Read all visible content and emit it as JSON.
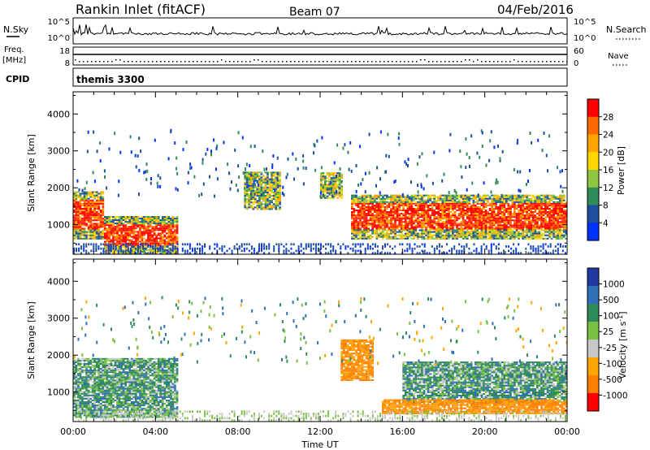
{
  "header": {
    "station": "Rankin Inlet (fitACF)",
    "beam": "Beam 07",
    "date": "04/Feb/2016"
  },
  "strip_nsky": {
    "left_label": "N.Sky",
    "left_ticks": [
      "10^5",
      "10^0"
    ],
    "right_label": "N.Search",
    "right_ticks": [
      "10^5",
      "10^0"
    ]
  },
  "strip_freq": {
    "left_label_1": "Freq.",
    "left_label_2": "[MHz]",
    "left_ticks": [
      "18",
      "8"
    ],
    "right_label": "Nave",
    "right_ticks": [
      "60",
      "0"
    ]
  },
  "cpid": {
    "label": "CPID",
    "value": "themis 3300"
  },
  "chart_data": [
    {
      "type": "heatmap",
      "parameter": "power",
      "ylabel": "Slant Range [km]",
      "ylim": [
        200,
        4600
      ],
      "y_ticks": [
        1000,
        2000,
        3000,
        4000
      ],
      "xlim": [
        0,
        24
      ],
      "x_tick_labels": [
        "00:00",
        "04:00",
        "08:00",
        "12:00",
        "16:00",
        "20:00",
        "00:00"
      ],
      "colorbar": {
        "label": "Power [dB]",
        "ticks": [
          "28",
          "24",
          "20",
          "16",
          "12",
          "8",
          "4"
        ],
        "range": [
          0,
          30
        ],
        "colors": [
          "#ff0000",
          "#ff6a00",
          "#ffa500",
          "#ffd700",
          "#8ec63f",
          "#2e8b57",
          "#1f4e9c",
          "#0033ff"
        ]
      },
      "features": [
        {
          "t_start": 0.0,
          "t_end": 1.5,
          "r_low": 600,
          "r_high": 1900,
          "level": "strong"
        },
        {
          "t_start": 1.5,
          "t_end": 5.0,
          "r_low": 200,
          "r_high": 1200,
          "level": "strong"
        },
        {
          "t_start": 8.3,
          "t_end": 10.0,
          "r_low": 1400,
          "r_high": 2400,
          "level": "moderate"
        },
        {
          "t_start": 12.0,
          "t_end": 13.0,
          "r_low": 1700,
          "r_high": 2400,
          "level": "moderate"
        },
        {
          "t_start": 13.5,
          "t_end": 24.0,
          "r_low": 600,
          "r_high": 1800,
          "level": "strong"
        }
      ]
    },
    {
      "type": "heatmap",
      "parameter": "velocity",
      "ylabel": "Slant Range [km]",
      "ylim": [
        200,
        4600
      ],
      "y_ticks": [
        1000,
        2000,
        3000,
        4000
      ],
      "xlim": [
        0,
        24
      ],
      "x_tick_labels": [
        "00:00",
        "04:00",
        "08:00",
        "12:00",
        "16:00",
        "20:00",
        "00:00"
      ],
      "xlabel": "Time UT",
      "colorbar": {
        "label": "Velocity [m s^-1]",
        "ticks": [
          "1000",
          "500",
          "100",
          "25",
          "-25",
          "-100",
          "-500",
          "-1000"
        ],
        "range": [
          -1000,
          1000
        ],
        "colors": [
          "#1e3aa0",
          "#2f6fb5",
          "#2e8b57",
          "#7ac143",
          "#c8c8c8",
          "#ffa500",
          "#ff7f00",
          "#ff0000"
        ]
      },
      "features": [
        {
          "t_start": 0.0,
          "t_end": 5.0,
          "r_low": 300,
          "r_high": 1900,
          "sign": "positive"
        },
        {
          "t_start": 13.0,
          "t_end": 14.5,
          "r_low": 1300,
          "r_high": 2400,
          "sign": "negative"
        },
        {
          "t_start": 16.0,
          "t_end": 24.0,
          "r_low": 700,
          "r_high": 1800,
          "sign": "positive"
        },
        {
          "t_start": 15.0,
          "t_end": 24.0,
          "r_low": 400,
          "r_high": 800,
          "sign": "negative"
        }
      ]
    }
  ]
}
